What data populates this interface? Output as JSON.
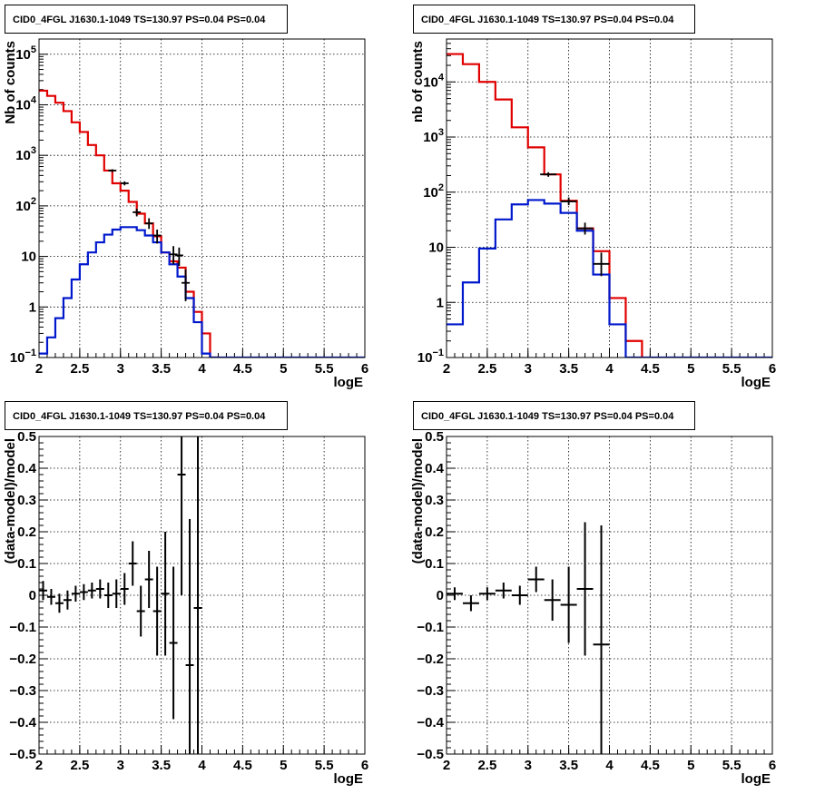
{
  "pad_title": "CID0_4FGL J1630.1-1049 TS=130.97 PS=0.04 PS=0.04",
  "colors": {
    "model": "#e00000",
    "source": "#0018cc",
    "data": "#000000"
  },
  "chart_data": [
    {
      "type": "line",
      "title": "CID0_4FGL J1630.1-1049 TS=130.97 PS=0.04 PS=0.04",
      "xlabel": "logE",
      "ylabel": "Nb of counts",
      "xlim": [
        2,
        6
      ],
      "ylim": [
        0.1,
        200000
      ],
      "yscale": "log",
      "grid": true,
      "xticks": [
        "2",
        "2.5",
        "3",
        "3.5",
        "4",
        "4.5",
        "5",
        "5.5",
        "6"
      ],
      "yticks": [
        "10^-1",
        "1",
        "10",
        "10^2",
        "10^3",
        "10^4",
        "10^5"
      ],
      "bin_edges": [
        2.0,
        2.1,
        2.2,
        2.3,
        2.4,
        2.5,
        2.6,
        2.7,
        2.8,
        2.9,
        3.0,
        3.1,
        3.2,
        3.3,
        3.4,
        3.5,
        3.6,
        3.7,
        3.8,
        3.9,
        4.0,
        4.1,
        4.2,
        4.3,
        4.4,
        4.5,
        4.6,
        4.7,
        4.8,
        4.9,
        5.0,
        5.1,
        5.2,
        5.3,
        5.4,
        5.5,
        5.6,
        5.7,
        5.8,
        5.9,
        6.0
      ],
      "series": [
        {
          "kind": "model",
          "values": [
            19000,
            15000,
            11000,
            7500,
            4500,
            2900,
            1600,
            1000,
            500,
            280,
            200,
            120,
            70,
            45,
            25,
            12,
            8,
            6,
            2,
            0.8,
            0.3,
            0.1,
            0,
            0,
            0,
            0,
            0,
            0,
            0,
            0,
            0,
            0,
            0,
            0,
            0,
            0,
            0,
            0,
            0,
            0
          ]
        },
        {
          "kind": "source",
          "values": [
            0.12,
            0.25,
            0.6,
            1.5,
            3.5,
            7,
            12,
            19,
            27,
            34,
            38,
            38,
            33,
            26,
            19,
            12,
            7,
            4,
            1.5,
            0.5,
            0.12,
            0.1,
            0.1,
            0.1,
            0.1,
            0.1,
            0.1,
            0.1,
            0.1,
            0.1,
            0.1,
            0.1,
            0.1,
            0.1,
            0.1,
            0.1,
            0.1,
            0.1,
            0.1,
            0.1
          ]
        },
        {
          "kind": "data",
          "points": [
            {
              "x": 2.9,
              "y": 500,
              "dx": 0.05,
              "lo": 470,
              "hi": 530
            },
            {
              "x": 3.05,
              "y": 280,
              "dx": 0.05,
              "lo": 255,
              "hi": 305
            },
            {
              "x": 3.2,
              "y": 75,
              "dx": 0.05,
              "lo": 62,
              "hi": 88
            },
            {
              "x": 3.35,
              "y": 45,
              "dx": 0.05,
              "lo": 35,
              "hi": 57
            },
            {
              "x": 3.45,
              "y": 26,
              "dx": 0.05,
              "lo": 18,
              "hi": 34
            },
            {
              "x": 3.65,
              "y": 11,
              "dx": 0.05,
              "lo": 7,
              "hi": 16
            },
            {
              "x": 3.72,
              "y": 10.5,
              "dx": 0.05,
              "lo": 6.5,
              "hi": 15
            },
            {
              "x": 3.8,
              "y": 3,
              "dx": 0.05,
              "lo": 1.3,
              "hi": 5.5
            }
          ]
        }
      ]
    },
    {
      "type": "line",
      "title": "CID0_4FGL J1630.1-1049 TS=130.97 PS=0.04 PS=0.04",
      "xlabel": "logE",
      "ylabel": "nb of counts",
      "xlim": [
        2,
        6
      ],
      "ylim": [
        0.1,
        60000
      ],
      "yscale": "log",
      "grid": true,
      "xticks": [
        "2",
        "2.5",
        "3",
        "3.5",
        "4",
        "4.5",
        "5",
        "5.5",
        "6"
      ],
      "yticks": [
        "10^-1",
        "1",
        "10",
        "10^2",
        "10^3",
        "10^4"
      ],
      "bin_edges": [
        2.0,
        2.2,
        2.4,
        2.6,
        2.8,
        3.0,
        3.2,
        3.4,
        3.6,
        3.8,
        4.0,
        4.2,
        4.4,
        4.6,
        4.8,
        5.0,
        5.2,
        5.4,
        5.6,
        5.8,
        6.0
      ],
      "series": [
        {
          "kind": "model",
          "values": [
            32000,
            21000,
            10000,
            4800,
            1500,
            650,
            210,
            70,
            22,
            8.5,
            1.2,
            0.2,
            0,
            0,
            0,
            0,
            0,
            0,
            0,
            0
          ]
        },
        {
          "kind": "source",
          "values": [
            0.4,
            2.3,
            9.5,
            32,
            60,
            72,
            62,
            42,
            20,
            3.2,
            0.4,
            0.1,
            0.1,
            0.1,
            0.1,
            0.1,
            0.1,
            0.1,
            0.1,
            0.1
          ]
        },
        {
          "kind": "data",
          "points": [
            {
              "x": 3.25,
              "y": 210,
              "dx": 0.1,
              "lo": 190,
              "hi": 230
            },
            {
              "x": 3.5,
              "y": 68,
              "dx": 0.1,
              "lo": 58,
              "hi": 80
            },
            {
              "x": 3.7,
              "y": 22,
              "dx": 0.1,
              "lo": 17,
              "hi": 28
            },
            {
              "x": 3.9,
              "y": 5,
              "dx": 0.1,
              "lo": 3,
              "hi": 8
            }
          ]
        }
      ]
    },
    {
      "type": "scatter",
      "title": "CID0_4FGL J1630.1-1049 TS=130.97 PS=0.04 PS=0.04",
      "xlabel": "logE",
      "ylabel": "(data-model)/model",
      "xlim": [
        2,
        6
      ],
      "ylim": [
        -0.5,
        0.5
      ],
      "grid": true,
      "xticks": [
        "2",
        "2.5",
        "3",
        "3.5",
        "4",
        "4.5",
        "5",
        "5.5",
        "6"
      ],
      "yticks": [
        "−0.5",
        "−0.4",
        "−0.3",
        "−0.2",
        "−0.1",
        "0",
        "0.1",
        "0.2",
        "0.3",
        "0.4",
        "0.5"
      ],
      "points": [
        {
          "x": 2.05,
          "y": 0.015,
          "dx": 0.05,
          "lo": -0.015,
          "hi": 0.045
        },
        {
          "x": 2.15,
          "y": -0.005,
          "dx": 0.05,
          "lo": -0.03,
          "hi": 0.02
        },
        {
          "x": 2.25,
          "y": -0.025,
          "dx": 0.05,
          "lo": -0.055,
          "hi": 0.005
        },
        {
          "x": 2.35,
          "y": -0.015,
          "dx": 0.05,
          "lo": -0.045,
          "hi": 0.015
        },
        {
          "x": 2.45,
          "y": 0.005,
          "dx": 0.05,
          "lo": -0.02,
          "hi": 0.03
        },
        {
          "x": 2.55,
          "y": 0.01,
          "dx": 0.05,
          "lo": -0.015,
          "hi": 0.035
        },
        {
          "x": 2.65,
          "y": 0.015,
          "dx": 0.05,
          "lo": -0.01,
          "hi": 0.04
        },
        {
          "x": 2.75,
          "y": 0.02,
          "dx": 0.05,
          "lo": -0.01,
          "hi": 0.05
        },
        {
          "x": 2.85,
          "y": 0.0,
          "dx": 0.05,
          "lo": -0.04,
          "hi": 0.04
        },
        {
          "x": 2.95,
          "y": 0.005,
          "dx": 0.05,
          "lo": -0.04,
          "hi": 0.05
        },
        {
          "x": 3.05,
          "y": 0.02,
          "dx": 0.05,
          "lo": -0.03,
          "hi": 0.07
        },
        {
          "x": 3.15,
          "y": 0.1,
          "dx": 0.05,
          "lo": 0.03,
          "hi": 0.17
        },
        {
          "x": 3.25,
          "y": -0.05,
          "dx": 0.05,
          "lo": -0.13,
          "hi": 0.03
        },
        {
          "x": 3.35,
          "y": 0.05,
          "dx": 0.05,
          "lo": -0.04,
          "hi": 0.14
        },
        {
          "x": 3.45,
          "y": -0.05,
          "dx": 0.05,
          "lo": -0.19,
          "hi": 0.09
        },
        {
          "x": 3.55,
          "y": 0.005,
          "dx": 0.05,
          "lo": -0.19,
          "hi": 0.2
        },
        {
          "x": 3.65,
          "y": -0.15,
          "dx": 0.05,
          "lo": -0.39,
          "hi": 0.09
        },
        {
          "x": 3.75,
          "y": 0.38,
          "dx": 0.05,
          "lo": 0.0,
          "hi": 0.5
        },
        {
          "x": 3.85,
          "y": -0.22,
          "dx": 0.05,
          "lo": -0.5,
          "hi": 0.24
        },
        {
          "x": 3.95,
          "y": -0.04,
          "dx": 0.05,
          "lo": -0.5,
          "hi": 0.5
        }
      ]
    },
    {
      "type": "scatter",
      "title": "CID0_4FGL J1630.1-1049 TS=130.97 PS=0.04 PS=0.04",
      "xlabel": "logE",
      "ylabel": "(data-model)/model",
      "xlim": [
        2,
        6
      ],
      "ylim": [
        -0.5,
        0.5
      ],
      "grid": true,
      "xticks": [
        "2",
        "2.5",
        "3",
        "3.5",
        "4",
        "4.5",
        "5",
        "5.5",
        "6"
      ],
      "yticks": [
        "−0.5",
        "−0.4",
        "−0.3",
        "−0.2",
        "−0.1",
        "0",
        "0.1",
        "0.2",
        "0.3",
        "0.4",
        "0.5"
      ],
      "points": [
        {
          "x": 2.1,
          "y": 0.005,
          "dx": 0.1,
          "lo": -0.015,
          "hi": 0.025
        },
        {
          "x": 2.3,
          "y": -0.025,
          "dx": 0.1,
          "lo": -0.05,
          "hi": 0.0
        },
        {
          "x": 2.5,
          "y": 0.005,
          "dx": 0.1,
          "lo": -0.015,
          "hi": 0.025
        },
        {
          "x": 2.7,
          "y": 0.015,
          "dx": 0.1,
          "lo": -0.01,
          "hi": 0.04
        },
        {
          "x": 2.9,
          "y": 0.0,
          "dx": 0.1,
          "lo": -0.03,
          "hi": 0.03
        },
        {
          "x": 3.1,
          "y": 0.05,
          "dx": 0.1,
          "lo": 0.01,
          "hi": 0.09
        },
        {
          "x": 3.3,
          "y": -0.015,
          "dx": 0.1,
          "lo": -0.08,
          "hi": 0.05
        },
        {
          "x": 3.5,
          "y": -0.03,
          "dx": 0.1,
          "lo": -0.15,
          "hi": 0.09
        },
        {
          "x": 3.7,
          "y": 0.02,
          "dx": 0.1,
          "lo": -0.19,
          "hi": 0.23
        },
        {
          "x": 3.9,
          "y": -0.155,
          "dx": 0.1,
          "lo": -0.5,
          "hi": 0.22
        }
      ]
    }
  ]
}
